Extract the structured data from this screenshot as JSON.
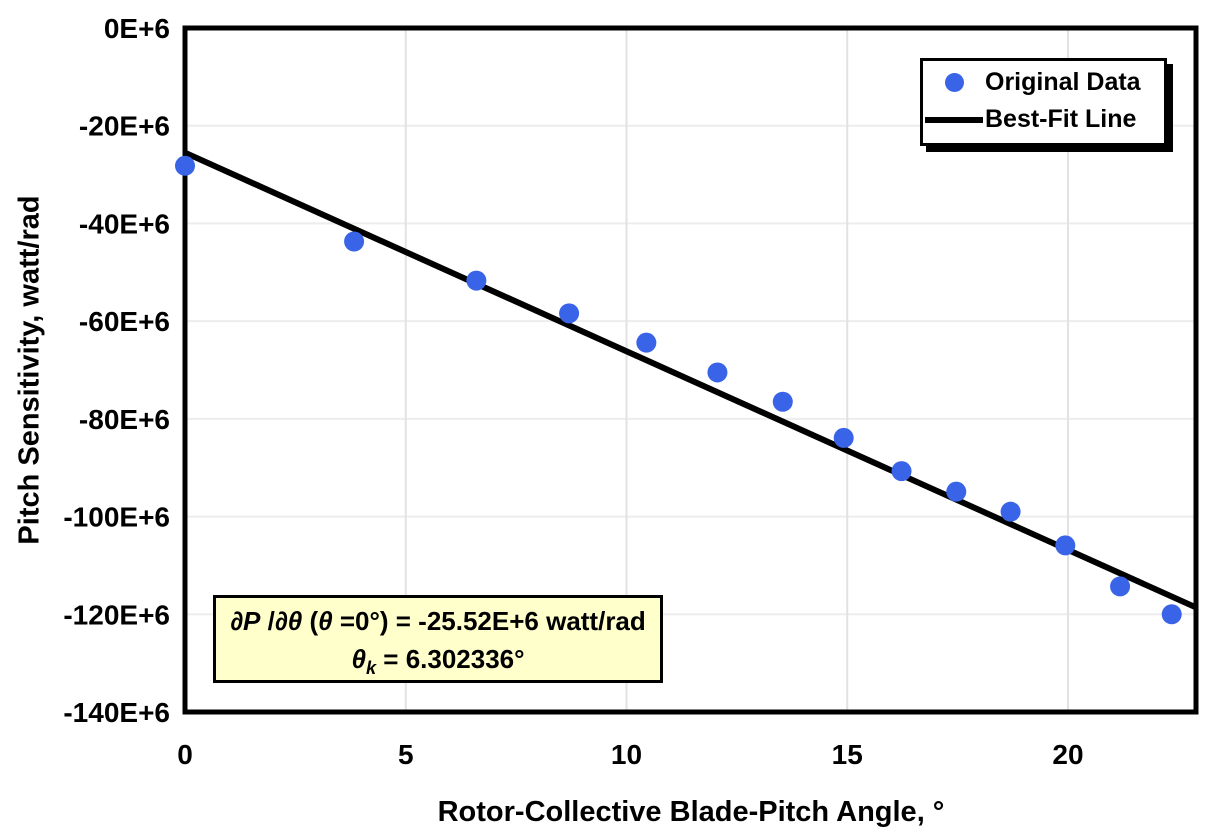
{
  "chart_data": {
    "type": "scatter",
    "title": "",
    "xlabel": "Rotor-Collective Blade-Pitch Angle, °",
    "ylabel": "Pitch Sensitivity, watt/rad",
    "xlim": [
      0,
      22.9
    ],
    "ylim": [
      -140,
      0
    ],
    "y_value_scale": "axis labels are in units of 1E+6 watt/rad",
    "grid": true,
    "legend_position": "top-right",
    "x_ticks": {
      "values": [
        0,
        5,
        10,
        15,
        20
      ],
      "labels": [
        "0",
        "5",
        "10",
        "15",
        "20"
      ]
    },
    "y_ticks": {
      "values": [
        0,
        -20,
        -40,
        -60,
        -80,
        -100,
        -120,
        -140
      ],
      "labels": [
        "0E+6",
        "-20E+6",
        "-40E+6",
        "-60E+6",
        "-80E+6",
        "-100E+6",
        "-120E+6",
        "-140E+6"
      ]
    },
    "series": [
      {
        "name": "Original Data",
        "type": "scatter",
        "marker_color": "#3964E8",
        "x": [
          0.0,
          3.83,
          6.6,
          8.7,
          10.45,
          12.06,
          13.54,
          14.92,
          16.23,
          17.47,
          18.7,
          19.94,
          21.18,
          22.35
        ],
        "y": [
          -28.2,
          -43.7,
          -51.7,
          -58.4,
          -64.4,
          -70.5,
          -76.5,
          -83.9,
          -90.7,
          -94.9,
          -99.0,
          -105.9,
          -114.3,
          -120.0
        ]
      },
      {
        "name": "Best-Fit Line",
        "type": "line",
        "color": "#000000",
        "x": [
          0,
          22.9
        ],
        "y": [
          -25.52,
          -118.6
        ]
      }
    ],
    "colors": {
      "marker": "#3964E8",
      "best_fit_line": "#000000",
      "grid_vertical": "#E2E2E2",
      "grid_horizontal": "#EDEDED",
      "axis": "#000000",
      "annotation_bg": "#FFFFCC"
    }
  },
  "legend": {
    "item1": "Original Data",
    "item2": "Best-Fit Line"
  },
  "annotation": {
    "line1": {
      "dP": "∂P",
      "slash": " /",
      "dTheta": "∂θ",
      "paren": " (",
      "theta": "θ",
      "rest": " =0°) = -25.52E+6 watt/rad"
    },
    "line2": {
      "theta": "θ",
      "sub": "k",
      "rest": " = 6.302336°"
    }
  }
}
